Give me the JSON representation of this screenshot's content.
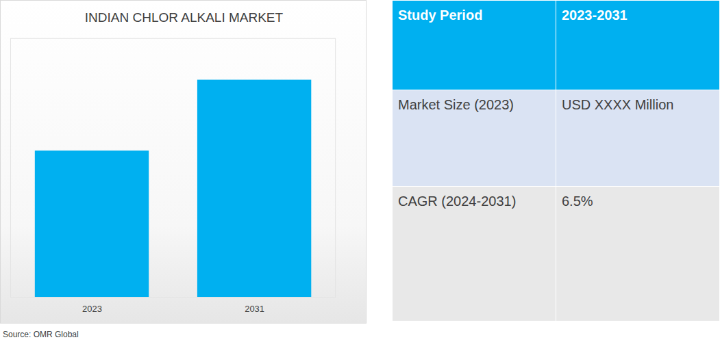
{
  "chart_data": {
    "type": "bar",
    "title": "INDIAN CHLOR ALKALI MARKET",
    "categories": [
      "2023",
      "2031"
    ],
    "values": [
      215,
      319
    ],
    "color": "#00b0f0",
    "ylim": [
      0,
      380
    ],
    "yticks": [
      0
    ],
    "grid": false,
    "tick_labels": "x",
    "data_labels": false
  },
  "table": {
    "header": [
      "Study Period",
      "2023-2031"
    ],
    "rows": [
      [
        "Market Size (2023)",
        "USD XXXX Million"
      ],
      [
        "CAGR (2024-2031)",
        "6.5%"
      ]
    ]
  },
  "source": "Source: OMR Global"
}
